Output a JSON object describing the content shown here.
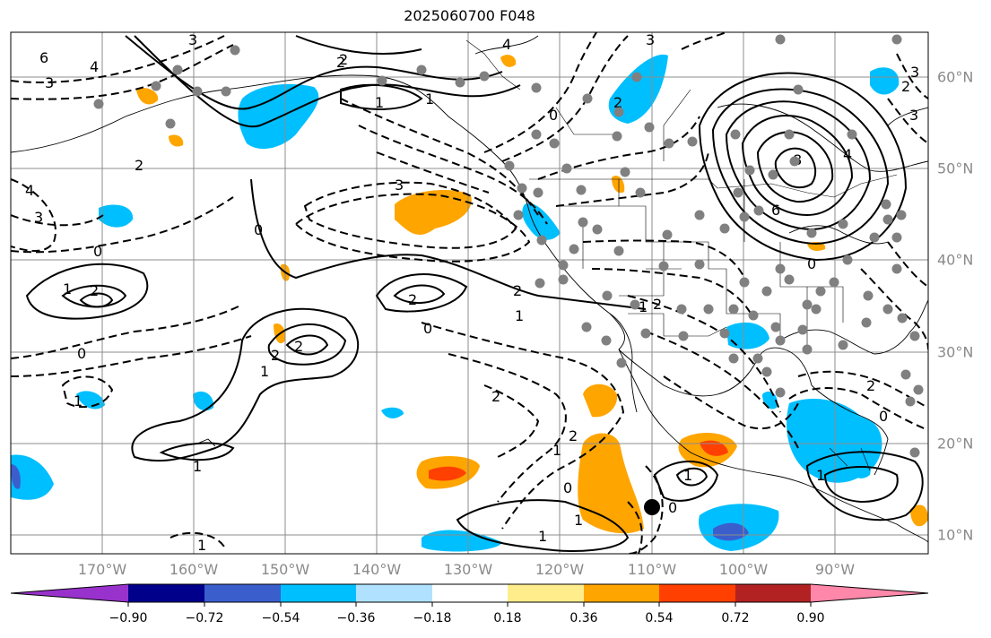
{
  "title": "2025060700 F048",
  "map": {
    "projection": "plate-carree",
    "lon_range": [
      -180,
      -81
    ],
    "lat_range": [
      7,
      65
    ],
    "gridlines": true,
    "lon_labels": [
      "170°W",
      "160°W",
      "150°W",
      "140°W",
      "130°W",
      "120°W",
      "110°W",
      "100°W",
      "90°W"
    ],
    "lat_labels": [
      "60°N",
      "50°N",
      "40°N",
      "30°N",
      "20°N",
      "10°N"
    ],
    "contour_labels": [
      "6",
      "4",
      "3",
      "2",
      "3",
      "4",
      "3",
      "2",
      "1",
      "0",
      "1",
      "2",
      "0",
      "1",
      "2",
      "3",
      "2",
      "1",
      "0",
      "2",
      "1",
      "0",
      "1",
      "2",
      "2",
      "1",
      "0",
      "1",
      "1",
      "2",
      "2",
      "8",
      "6",
      "4",
      "2",
      "0",
      "1",
      "2",
      "3",
      "1",
      "2",
      "0",
      "1",
      "0",
      "1",
      "1",
      "0",
      "3",
      "4",
      "2",
      "3"
    ],
    "marker": "black-dot"
  },
  "colorbar": {
    "ticks": [
      "−0.90",
      "−0.72",
      "−0.54",
      "−0.36",
      "−0.18",
      "0.18",
      "0.36",
      "0.54",
      "0.72",
      "0.90"
    ],
    "colors": [
      "#9932cc",
      "#00008b",
      "#3a5fcd",
      "#00bfff",
      "#b0e2ff",
      "#ffffff",
      "#ffec8b",
      "#ffa500",
      "#ff4000",
      "#b22222",
      "#ff88aa"
    ],
    "extend": "both"
  }
}
